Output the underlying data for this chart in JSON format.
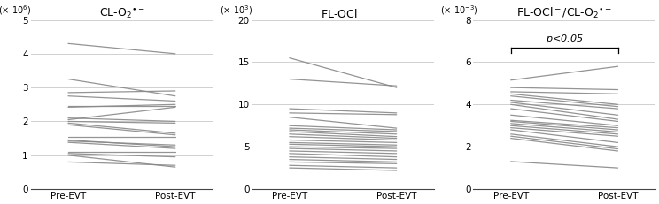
{
  "panel1": {
    "title": "CL-O$_2$$^{\\bullet-}$",
    "unit": "(× 10$^6$)",
    "ylim": [
      0,
      5
    ],
    "yticks": [
      0,
      1,
      2,
      3,
      4,
      5
    ],
    "pre": [
      4.3,
      3.25,
      2.85,
      2.75,
      2.45,
      2.42,
      2.1,
      2.05,
      2.0,
      1.95,
      1.9,
      1.55,
      1.45,
      1.42,
      1.38,
      1.1,
      1.05,
      1.0,
      0.8
    ],
    "post": [
      4.0,
      2.75,
      2.9,
      2.6,
      2.45,
      2.5,
      2.0,
      2.42,
      1.95,
      1.65,
      1.6,
      1.55,
      1.25,
      1.3,
      1.2,
      1.1,
      0.95,
      0.65,
      0.7
    ]
  },
  "panel2": {
    "title": "FL-OCl$^-$",
    "unit": "(× 10$^3$)",
    "ylim": [
      0,
      20
    ],
    "yticks": [
      0,
      5,
      10,
      15,
      20
    ],
    "pre": [
      15.5,
      13.0,
      9.5,
      9.0,
      8.5,
      7.5,
      7.2,
      7.0,
      6.8,
      6.5,
      6.2,
      5.8,
      5.5,
      5.3,
      5.0,
      4.8,
      4.5,
      4.2,
      3.8,
      3.5,
      3.2,
      2.8,
      2.5
    ],
    "post": [
      12.0,
      12.2,
      9.0,
      8.8,
      7.2,
      7.0,
      6.8,
      6.5,
      6.2,
      6.0,
      5.8,
      5.5,
      5.2,
      5.0,
      4.8,
      4.5,
      4.2,
      3.8,
      3.5,
      3.2,
      3.0,
      2.5,
      2.2
    ]
  },
  "panel3": {
    "title": "FL-OCl$^-$/CL-O$_2$$^{\\bullet-}$",
    "unit": "(× 10$^{-3}$)",
    "ylim": [
      0,
      8
    ],
    "yticks": [
      0,
      2,
      4,
      6,
      8
    ],
    "pre": [
      1.3,
      2.4,
      2.5,
      2.6,
      2.8,
      2.9,
      3.0,
      3.1,
      3.2,
      3.25,
      3.5,
      3.8,
      4.0,
      4.1,
      4.2,
      4.4,
      4.5,
      4.6,
      4.8,
      5.15
    ],
    "post": [
      1.0,
      1.8,
      1.9,
      2.0,
      2.2,
      2.5,
      2.6,
      2.7,
      2.8,
      2.9,
      3.0,
      3.2,
      3.3,
      3.5,
      3.8,
      3.9,
      4.0,
      4.5,
      4.7,
      5.8
    ],
    "sig_text": "$p$<0.05"
  },
  "line_color": "#888888",
  "line_alpha": 0.9,
  "line_width": 0.9,
  "xtick_labels": [
    "Pre-EVT",
    "Post-EVT"
  ],
  "grid_color": "#d0d0d0"
}
